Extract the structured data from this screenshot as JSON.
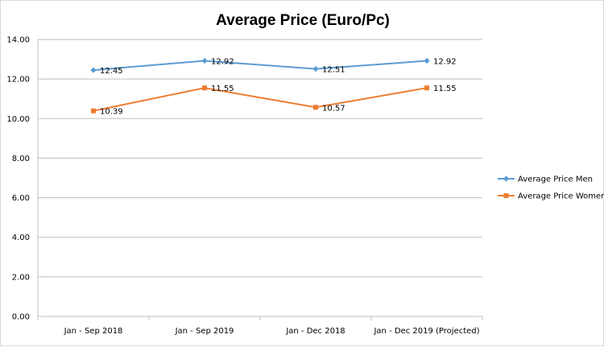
{
  "chart_data": {
    "type": "line",
    "title": "Average Price (Euro/Pc)",
    "categories": [
      "Jan - Sep 2018",
      "Jan - Sep 2019",
      "Jan - Dec 2018",
      "Jan - Dec 2019 (Projected)"
    ],
    "series": [
      {
        "name": "Average Price Men",
        "values": [
          12.45,
          12.92,
          12.51,
          12.92
        ],
        "labels": [
          "12.45",
          "12.92",
          "12.51",
          "12.92"
        ],
        "color": "#5b9bd5",
        "marker": "diamond"
      },
      {
        "name": "Average Price Women",
        "values": [
          10.39,
          11.55,
          10.57,
          11.55
        ],
        "labels": [
          "10.39",
          "11.55",
          "10.57",
          "11.55"
        ],
        "color": "#ed7d31",
        "marker": "square"
      }
    ],
    "ylim": [
      0,
      14
    ],
    "yticks": [
      "0.00",
      "2.00",
      "4.00",
      "6.00",
      "8.00",
      "10.00",
      "12.00",
      "14.00"
    ],
    "grid": true,
    "legend": "right"
  }
}
